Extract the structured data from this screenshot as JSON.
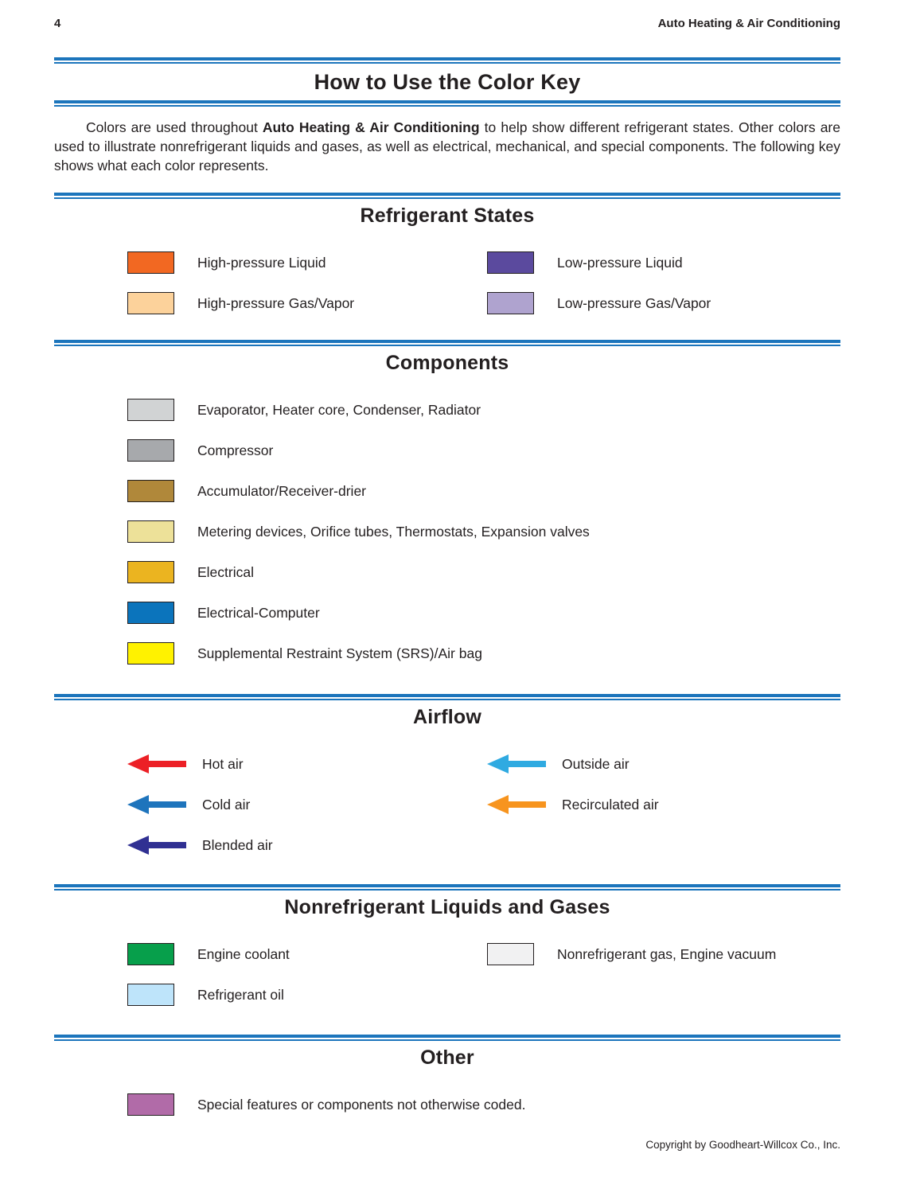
{
  "page": {
    "number": "4",
    "running_head": "Auto Heating & Air Conditioning",
    "footer": "Copyright by Goodheart-Willcox Co., Inc."
  },
  "title": "How to Use the Color Key",
  "intro": {
    "text_before": "Colors are used throughout ",
    "bold": "Auto Heating & Air Conditioning",
    "text_after": " to help show different refrigerant states. Other colors are used to illustrate nonrefrigerant liquids and gases, as well as electrical, mechanical, and special components. The following key shows what each color represents."
  },
  "colors": {
    "rule_blue": "#1C75BC",
    "text_black": "#231F20"
  },
  "sections": [
    {
      "id": "refrigerant-states",
      "heading": "Refrigerant States",
      "style": "swatch",
      "two_column": true,
      "rows": [
        [
          {
            "label": "High-pressure Liquid",
            "color": "#F26822"
          },
          {
            "label": "Low-pressure Liquid",
            "color": "#5B4A9E"
          }
        ],
        [
          {
            "label": "High-pressure Gas/Vapor",
            "color": "#FCD29B"
          },
          {
            "label": "Low-pressure Gas/Vapor",
            "color": "#AFA3CF"
          }
        ]
      ]
    },
    {
      "id": "components",
      "heading": "Components",
      "style": "swatch",
      "two_column": false,
      "rows": [
        [
          {
            "label": "Evaporator, Heater core, Condenser, Radiator",
            "color": "#D1D3D4"
          }
        ],
        [
          {
            "label": "Compressor",
            "color": "#A7A9AC"
          }
        ],
        [
          {
            "label": "Accumulator/Receiver-drier",
            "color": "#B0883A"
          }
        ],
        [
          {
            "label": "Metering devices, Orifice tubes, Thermostats, Expansion valves",
            "color": "#EDE199"
          }
        ],
        [
          {
            "label": "Electrical",
            "color": "#EBB420"
          }
        ],
        [
          {
            "label": "Electrical-Computer",
            "color": "#0B74BC"
          }
        ],
        [
          {
            "label": "Supplemental Restraint System (SRS)/Air bag",
            "color": "#FFF200"
          }
        ]
      ]
    },
    {
      "id": "airflow",
      "heading": "Airflow",
      "style": "arrow",
      "two_column": true,
      "rows": [
        [
          {
            "label": "Hot air",
            "color": "#EC2026"
          },
          {
            "label": "Outside air",
            "color": "#2FAAE1"
          }
        ],
        [
          {
            "label": "Cold air",
            "color": "#1E74BC"
          },
          {
            "label": "Recirculated air",
            "color": "#F7941E"
          }
        ],
        [
          {
            "label": "Blended air",
            "color": "#303092"
          },
          null
        ]
      ]
    },
    {
      "id": "nonrefrigerant-liquids-gases",
      "heading": "Nonrefrigerant Liquids and Gases",
      "style": "swatch",
      "two_column": true,
      "rows": [
        [
          {
            "label": "Engine coolant",
            "color": "#079F4B"
          },
          {
            "label": "Nonrefrigerant gas, Engine vacuum",
            "color": "#F1F1F2"
          }
        ],
        [
          {
            "label": "Refrigerant oil",
            "color": "#BEE4FA"
          },
          null
        ]
      ]
    },
    {
      "id": "other",
      "heading": "Other",
      "style": "swatch",
      "two_column": false,
      "rows": [
        [
          {
            "label": "Special features or components not otherwise coded.",
            "color": "#B16BA8"
          }
        ]
      ]
    }
  ]
}
